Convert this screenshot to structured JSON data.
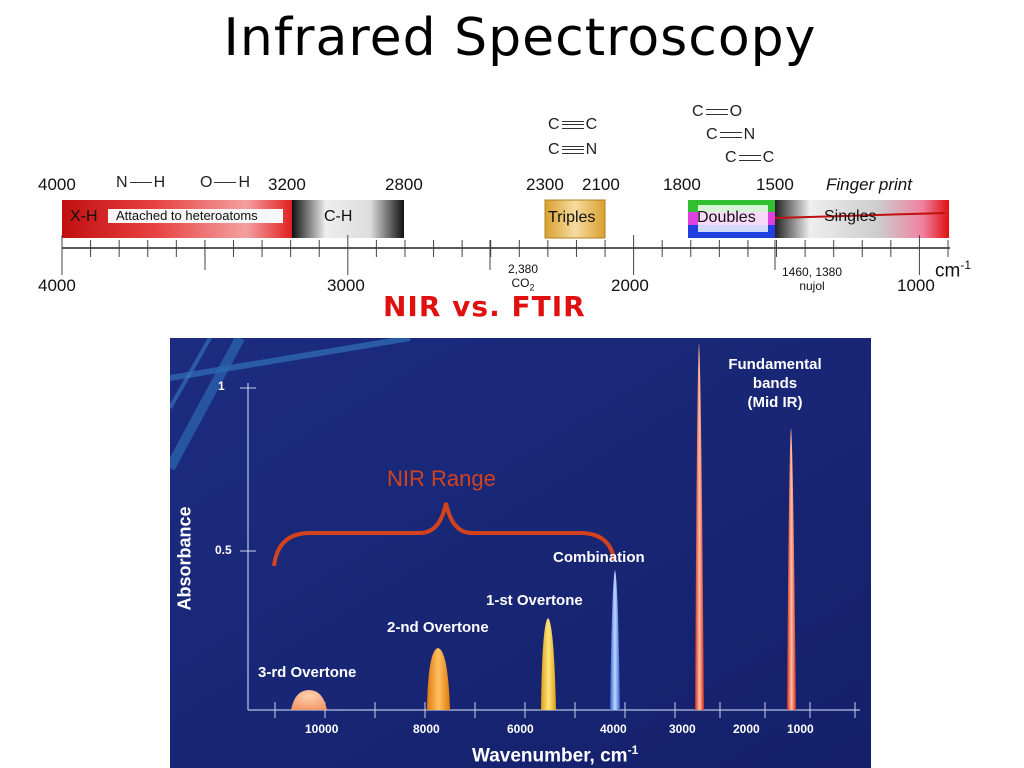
{
  "title": "Infrared Spectroscopy",
  "subtitle": "NIR vs. FTIR",
  "ir_chart": {
    "top_ticks": [
      "4000",
      "3200",
      "2800",
      "2300",
      "2100",
      "1800",
      "1500"
    ],
    "fingerprint_label": "Finger print",
    "bottom_ticks": [
      "4000",
      "3000",
      "2000",
      "1000"
    ],
    "unit": "cm",
    "unit_exp": "-1",
    "co2_note": "2,380",
    "co2_label": "CO",
    "co2_sub": "2",
    "nujol_note": "1460, 1380",
    "nujol_label": "nujol",
    "bands": {
      "xh": "X-H",
      "attached": "Attached to heteroatoms",
      "ch": "C-H",
      "triples": "Triples",
      "doubles": "Doubles",
      "singles": "Singles"
    },
    "bonds": {
      "nh_n": "N",
      "nh_h": "H",
      "oh_o": "O",
      "oh_h": "H",
      "cc_triple_a": "C",
      "cc_triple_b": "C",
      "cn_triple_a": "C",
      "cn_triple_b": "N",
      "co_double_a": "C",
      "co_double_b": "O",
      "cn_double_a": "C",
      "cn_double_b": "N",
      "cc_double_a": "C",
      "cc_double_b": "C"
    }
  },
  "nir_chart": {
    "ylabel": "Absorbance",
    "xlabel": "Wavenumber, cm",
    "xlabel_exp": "-1",
    "y_ticks": [
      "1",
      "0.5"
    ],
    "x_ticks": [
      "10000",
      "8000",
      "6000",
      "4000",
      "3000",
      "2000",
      "1000"
    ],
    "range_label": "NIR Range",
    "peaks": {
      "overtone3": "3-rd Overtone",
      "overtone2": "2-nd Overtone",
      "overtone1": "1-st Overtone",
      "combination": "Combination",
      "fundamental_1": "Fundamental",
      "fundamental_2": "bands",
      "fundamental_3": "(Mid IR)"
    },
    "colors": {
      "background": "#1a2a7a",
      "overtone3": "#f29a68",
      "overtone2": "#f59a1a",
      "overtone1": "#f3c21a",
      "combination": "#4f7fe0",
      "fundamental": "#e63a28",
      "range": "#d2421d"
    }
  }
}
